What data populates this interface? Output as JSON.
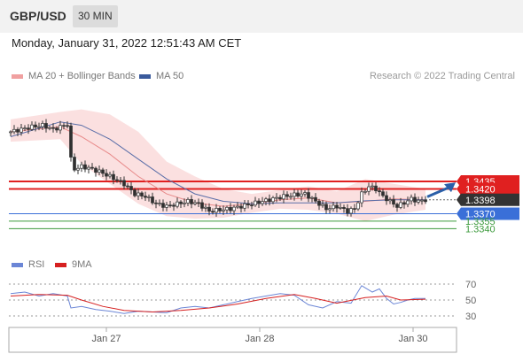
{
  "header": {
    "pair": "GBP/USD",
    "timeframe": "30 MIN"
  },
  "timestamp": "Monday, January 31, 2022 12:51:43 AM CET",
  "legend": {
    "bb_label": "MA 20 + Bollinger Bands",
    "ma50_label": "MA 50",
    "credit": "Research © 2022 Trading Central",
    "rsi_label": "RSI",
    "rsi_ma_label": "9MA"
  },
  "colors": {
    "bb_fill": "#f9d6d6",
    "ma20": "#e88a8a",
    "ma50": "#5a6ea8",
    "candle_up": "#2f2f2f",
    "candle_down": "#2f2f2f",
    "resistance": "#e02020",
    "support": "#3a6fd8",
    "target": "#3c9a3c",
    "arrow": "#2b5fa8",
    "current": "#333333",
    "rsi": "#6b86d6",
    "rsi_ma": "#d62020"
  },
  "chart_data": [
    {
      "type": "candlestick",
      "title": "GBP/USD 30 MIN",
      "y_range": [
        1.3305,
        1.3615
      ],
      "x_ticks": [
        "Jan 27",
        "Jan 28",
        "Jan 30"
      ],
      "current_price": 1.3398,
      "price_levels": [
        {
          "value": 1.3435,
          "kind": "resistance",
          "label": "1.3435"
        },
        {
          "value": 1.342,
          "kind": "resistance",
          "label": "1.3420"
        },
        {
          "value": 1.3398,
          "kind": "current",
          "label": "1.3398"
        },
        {
          "value": 1.337,
          "kind": "support",
          "label": "1.3370"
        },
        {
          "value": 1.3355,
          "kind": "target",
          "label": "1.3355"
        },
        {
          "value": 1.334,
          "kind": "target",
          "label": "1.3340"
        }
      ],
      "close_path": [
        [
          0,
          1.3535
        ],
        [
          3,
          1.354
        ],
        [
          6,
          1.3545
        ],
        [
          9,
          1.3548
        ],
        [
          12,
          1.354
        ],
        [
          14,
          1.3545
        ],
        [
          16,
          1.355
        ],
        [
          17,
          1.348
        ],
        [
          18,
          1.346
        ],
        [
          20,
          1.3465
        ],
        [
          22,
          1.3462
        ],
        [
          25,
          1.3455
        ],
        [
          28,
          1.3445
        ],
        [
          32,
          1.343
        ],
        [
          35,
          1.341
        ],
        [
          38,
          1.3405
        ],
        [
          41,
          1.339
        ],
        [
          44,
          1.3385
        ],
        [
          47,
          1.339
        ],
        [
          50,
          1.3395
        ],
        [
          53,
          1.339
        ],
        [
          56,
          1.3375
        ],
        [
          59,
          1.3378
        ],
        [
          62,
          1.338
        ],
        [
          65,
          1.3385
        ],
        [
          68,
          1.339
        ],
        [
          71,
          1.3395
        ],
        [
          74,
          1.34
        ],
        [
          77,
          1.3405
        ],
        [
          80,
          1.3408
        ],
        [
          83,
          1.341
        ],
        [
          86,
          1.3395
        ],
        [
          89,
          1.338
        ],
        [
          92,
          1.3385
        ],
        [
          95,
          1.3375
        ],
        [
          97,
          1.338
        ],
        [
          99,
          1.341
        ],
        [
          101,
          1.3425
        ],
        [
          103,
          1.342
        ],
        [
          105,
          1.3405
        ],
        [
          107,
          1.3395
        ],
        [
          109,
          1.3385
        ],
        [
          111,
          1.3392
        ],
        [
          113,
          1.34
        ],
        [
          115,
          1.3395
        ],
        [
          117,
          1.3398
        ]
      ],
      "ma50_path": [
        [
          0,
          1.3525
        ],
        [
          14,
          1.3555
        ],
        [
          20,
          1.3548
        ],
        [
          28,
          1.352
        ],
        [
          36,
          1.348
        ],
        [
          44,
          1.344
        ],
        [
          52,
          1.341
        ],
        [
          60,
          1.3395
        ],
        [
          68,
          1.339
        ],
        [
          76,
          1.3392
        ],
        [
          84,
          1.3392
        ],
        [
          92,
          1.3392
        ],
        [
          100,
          1.3396
        ],
        [
          108,
          1.3398
        ],
        [
          117,
          1.3398
        ]
      ],
      "ma20_path": [
        [
          0,
          1.3535
        ],
        [
          14,
          1.3545
        ],
        [
          20,
          1.3525
        ],
        [
          28,
          1.349
        ],
        [
          36,
          1.3445
        ],
        [
          44,
          1.341
        ],
        [
          52,
          1.3392
        ],
        [
          60,
          1.3385
        ],
        [
          68,
          1.339
        ],
        [
          76,
          1.3398
        ],
        [
          84,
          1.3402
        ],
        [
          92,
          1.3392
        ],
        [
          100,
          1.3395
        ],
        [
          108,
          1.34
        ],
        [
          117,
          1.3398
        ]
      ],
      "bb_upper_path": [
        [
          0,
          1.356
        ],
        [
          14,
          1.3575
        ],
        [
          20,
          1.358
        ],
        [
          28,
          1.357
        ],
        [
          36,
          1.3535
        ],
        [
          44,
          1.3475
        ],
        [
          52,
          1.3445
        ],
        [
          60,
          1.342
        ],
        [
          68,
          1.341
        ],
        [
          76,
          1.3418
        ],
        [
          84,
          1.3425
        ],
        [
          92,
          1.3415
        ],
        [
          100,
          1.344
        ],
        [
          108,
          1.343
        ],
        [
          117,
          1.342
        ]
      ],
      "bb_lower_path": [
        [
          0,
          1.3515
        ],
        [
          14,
          1.352
        ],
        [
          20,
          1.347
        ],
        [
          28,
          1.343
        ],
        [
          36,
          1.339
        ],
        [
          44,
          1.3365
        ],
        [
          52,
          1.336
        ],
        [
          60,
          1.3362
        ],
        [
          68,
          1.3372
        ],
        [
          76,
          1.338
        ],
        [
          84,
          1.3378
        ],
        [
          92,
          1.337
        ],
        [
          100,
          1.3355
        ],
        [
          108,
          1.3368
        ],
        [
          117,
          1.3378
        ]
      ]
    },
    {
      "type": "line",
      "title": "RSI",
      "y_ticks": [
        30,
        50,
        70
      ],
      "series": [
        {
          "name": "RSI",
          "values": [
            [
              0,
              58
            ],
            [
              4,
              60
            ],
            [
              8,
              55
            ],
            [
              12,
              58
            ],
            [
              16,
              55
            ],
            [
              17,
              40
            ],
            [
              20,
              42
            ],
            [
              24,
              38
            ],
            [
              28,
              36
            ],
            [
              32,
              33
            ],
            [
              36,
              36
            ],
            [
              40,
              35
            ],
            [
              44,
              34
            ],
            [
              48,
              40
            ],
            [
              52,
              42
            ],
            [
              56,
              40
            ],
            [
              60,
              44
            ],
            [
              64,
              48
            ],
            [
              68,
              52
            ],
            [
              72,
              55
            ],
            [
              76,
              58
            ],
            [
              80,
              56
            ],
            [
              84,
              44
            ],
            [
              88,
              40
            ],
            [
              92,
              48
            ],
            [
              96,
              46
            ],
            [
              99,
              68
            ],
            [
              102,
              60
            ],
            [
              104,
              64
            ],
            [
              106,
              52
            ],
            [
              108,
              45
            ],
            [
              110,
              47
            ],
            [
              112,
              50
            ],
            [
              114,
              52
            ],
            [
              117,
              52
            ]
          ]
        },
        {
          "name": "9MA",
          "values": [
            [
              0,
              55
            ],
            [
              8,
              57
            ],
            [
              16,
              56
            ],
            [
              20,
              50
            ],
            [
              26,
              42
            ],
            [
              32,
              37
            ],
            [
              40,
              35
            ],
            [
              48,
              37
            ],
            [
              56,
              40
            ],
            [
              64,
              45
            ],
            [
              72,
              52
            ],
            [
              80,
              57
            ],
            [
              86,
              52
            ],
            [
              92,
              46
            ],
            [
              100,
              53
            ],
            [
              106,
              55
            ],
            [
              110,
              50
            ],
            [
              117,
              51
            ]
          ]
        }
      ]
    }
  ]
}
